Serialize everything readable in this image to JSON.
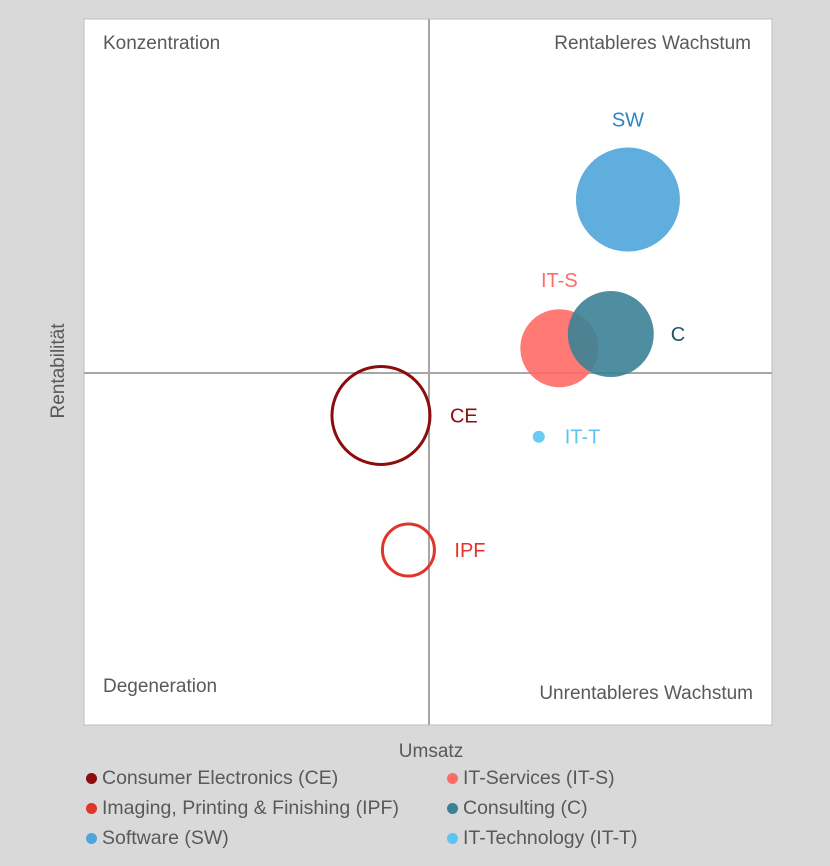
{
  "chart_data": {
    "type": "bubble",
    "xlabel": "Umsatz",
    "ylabel": "Rentabilität",
    "quadrants": {
      "top_left": "Konzentration",
      "top_right": "Rentableres Wachstum",
      "bottom_left": "Degeneration",
      "bottom_right": "Unrentableres Wachstum"
    },
    "series": [
      {
        "name": "Consumer Electronics (CE)",
        "label": "CE",
        "x": -0.14,
        "y": -0.12,
        "size": 49,
        "color": "#8b0d0d",
        "filled": false
      },
      {
        "name": "Imaging, Printing & Finishing (IPF)",
        "label": "IPF",
        "x": -0.06,
        "y": -0.5,
        "size": 26,
        "color": "#e0352b",
        "filled": false
      },
      {
        "name": "Software (SW)",
        "label": "SW",
        "x": 0.58,
        "y": 0.49,
        "size": 52,
        "color": "#4ea5d9",
        "filled": true
      },
      {
        "name": "IT-Services (IT-S)",
        "label": "IT-S",
        "x": 0.38,
        "y": 0.07,
        "size": 39,
        "color": "#ff6b66",
        "filled": true
      },
      {
        "name": "Consulting (C)",
        "label": "C",
        "x": 0.53,
        "y": 0.11,
        "size": 43,
        "color": "#3b8296",
        "filled": true
      },
      {
        "name": "IT-Technology (IT-T)",
        "label": "IT-T",
        "x": 0.32,
        "y": -0.18,
        "size": 6,
        "color": "#5bc5f2",
        "filled": true
      }
    ],
    "label_colors": {
      "CE": "#8b0d0d",
      "IPF": "#e0352b",
      "SW": "#2e86c1",
      "IT-S": "#ff6b66",
      "C": "#1f5566",
      "IT-T": "#5bc5f2"
    },
    "grid": false,
    "legend_position": "bottom"
  }
}
